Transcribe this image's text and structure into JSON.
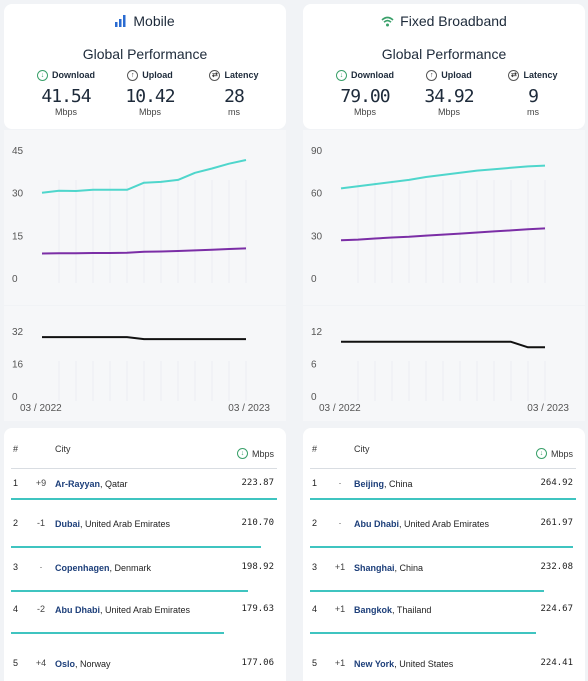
{
  "colors": {
    "download": "#4fd6cc",
    "upload": "#7b2ea6",
    "latency": "#111111",
    "bar": "#3fc4c0",
    "accent_green": "#3aa06a"
  },
  "panels": [
    {
      "title": "Mobile",
      "icon": "signal-bars-icon",
      "subtitle": "Global Performance",
      "metrics": {
        "download": {
          "label": "Download",
          "value": "41.54",
          "unit": "Mbps"
        },
        "upload": {
          "label": "Upload",
          "value": "10.42",
          "unit": "Mbps"
        },
        "latency": {
          "label": "Latency",
          "value": "28",
          "unit": "ms"
        }
      },
      "table": {
        "col_rank": "#",
        "col_city": "City",
        "col_mbps": "Mbps",
        "rows": [
          {
            "rank": "1",
            "change": "+9",
            "city": "Ar-Rayyan",
            "country": ", Qatar",
            "value": "223.87",
            "bar": 1.0
          },
          {
            "rank": "2",
            "change": "-1",
            "city": "Dubai",
            "country": ", United Arab Emirates",
            "value": "210.70",
            "bar": 0.94
          },
          {
            "rank": "3",
            "change": "·",
            "city": "Copenhagen",
            "country": ", Denmark",
            "value": "198.92",
            "bar": 0.89
          },
          {
            "rank": "4",
            "change": "-2",
            "city": "Abu Dhabi",
            "country": ", United Arab Emirates",
            "value": "179.63",
            "bar": 0.8
          },
          {
            "rank": "5",
            "change": "+4",
            "city": "Oslo",
            "country": ", Norway",
            "value": "177.06",
            "bar": 0.79
          }
        ]
      }
    },
    {
      "title": "Fixed Broadband",
      "icon": "wifi-icon",
      "subtitle": "Global Performance",
      "metrics": {
        "download": {
          "label": "Download",
          "value": "79.00",
          "unit": "Mbps"
        },
        "upload": {
          "label": "Upload",
          "value": "34.92",
          "unit": "Mbps"
        },
        "latency": {
          "label": "Latency",
          "value": "9",
          "unit": "ms"
        }
      },
      "table": {
        "col_rank": "#",
        "col_city": "City",
        "col_mbps": "Mbps",
        "rows": [
          {
            "rank": "1",
            "change": "·",
            "city": "Beijing",
            "country": ", China",
            "value": "264.92",
            "bar": 1.0
          },
          {
            "rank": "2",
            "change": "·",
            "city": "Abu Dhabi",
            "country": ", United Arab Emirates",
            "value": "261.97",
            "bar": 0.99
          },
          {
            "rank": "3",
            "change": "+1",
            "city": "Shanghai",
            "country": ", China",
            "value": "232.08",
            "bar": 0.88
          },
          {
            "rank": "4",
            "change": "+1",
            "city": "Bangkok",
            "country": ", Thailand",
            "value": "224.67",
            "bar": 0.85
          },
          {
            "rank": "5",
            "change": "+1",
            "city": "New York",
            "country": ", United States",
            "value": "224.41",
            "bar": 0.85
          }
        ]
      }
    }
  ],
  "chart_data": [
    {
      "type": "line",
      "panel": "Mobile",
      "ylim": [
        0,
        45
      ],
      "yticks": [
        "45",
        "30",
        "15",
        "0"
      ],
      "x": [
        "03/2022",
        "04/2022",
        "05/2022",
        "06/2022",
        "07/2022",
        "08/2022",
        "09/2022",
        "10/2022",
        "11/2022",
        "12/2022",
        "01/2023",
        "02/2023",
        "03/2023"
      ],
      "series": [
        {
          "key": "download",
          "values": [
            30.0,
            30.7,
            30.6,
            31.0,
            31.0,
            31.0,
            33.5,
            33.8,
            34.5,
            37.0,
            38.5,
            40.2,
            41.5
          ]
        },
        {
          "key": "upload",
          "values": [
            8.6,
            8.7,
            8.7,
            8.8,
            8.8,
            8.9,
            9.2,
            9.3,
            9.5,
            9.7,
            9.9,
            10.2,
            10.4
          ]
        }
      ]
    },
    {
      "type": "line",
      "panel": "Mobile",
      "ylim": [
        0,
        32
      ],
      "yticks": [
        "32",
        "16",
        "0"
      ],
      "xticks": [
        "03 / 2022",
        "03 / 2023"
      ],
      "x": [
        "03/2022",
        "04/2022",
        "05/2022",
        "06/2022",
        "07/2022",
        "08/2022",
        "09/2022",
        "10/2022",
        "11/2022",
        "12/2022",
        "01/2023",
        "02/2023",
        "03/2023"
      ],
      "series": [
        {
          "key": "latency",
          "values": [
            29,
            29,
            29,
            29,
            29,
            29,
            28,
            28,
            28,
            28,
            28,
            28,
            28
          ]
        }
      ]
    },
    {
      "type": "line",
      "panel": "Fixed Broadband",
      "ylim": [
        0,
        90
      ],
      "yticks": [
        "90",
        "60",
        "30",
        "0"
      ],
      "x": [
        "03/2022",
        "04/2022",
        "05/2022",
        "06/2022",
        "07/2022",
        "08/2022",
        "09/2022",
        "10/2022",
        "11/2022",
        "12/2022",
        "01/2023",
        "02/2023",
        "03/2023"
      ],
      "series": [
        {
          "key": "download",
          "values": [
            63.0,
            64.5,
            66.0,
            67.5,
            69.0,
            71.0,
            72.5,
            74.0,
            75.5,
            76.5,
            77.5,
            78.5,
            79.0
          ]
        },
        {
          "key": "upload",
          "values": [
            26.5,
            27.0,
            27.8,
            28.5,
            29.0,
            29.8,
            30.5,
            31.2,
            32.0,
            32.8,
            33.5,
            34.3,
            34.9
          ]
        }
      ]
    },
    {
      "type": "line",
      "panel": "Fixed Broadband",
      "ylim": [
        0,
        12
      ],
      "yticks": [
        "12",
        "6",
        "0"
      ],
      "xticks": [
        "03 / 2022",
        "03 / 2023"
      ],
      "x": [
        "03/2022",
        "04/2022",
        "05/2022",
        "06/2022",
        "07/2022",
        "08/2022",
        "09/2022",
        "10/2022",
        "11/2022",
        "12/2022",
        "01/2023",
        "02/2023",
        "03/2023"
      ],
      "series": [
        {
          "key": "latency",
          "values": [
            10,
            10,
            10,
            10,
            10,
            10,
            10,
            10,
            10,
            10,
            10,
            9,
            9
          ]
        }
      ]
    }
  ]
}
